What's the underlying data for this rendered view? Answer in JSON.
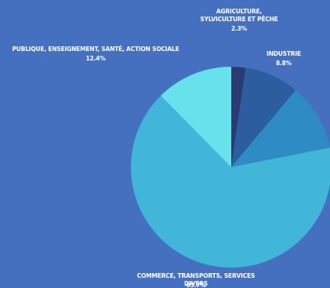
{
  "chart_data": {
    "type": "pie",
    "categories": [
      "AGRICULTURE,\nSYLVICULTURE ET PÊCHE",
      "INDUSTRIE",
      null,
      "COMMERCE, TRANSPORTS, SERVICES DIVERS",
      "PUBLIQUE, ENSEIGNEMENT, SANTÉ, ACTION SOCIALE"
    ],
    "values": [
      2.3,
      8.8,
      10.8,
      65.7,
      12.4
    ],
    "value_labels": [
      "2.3%",
      "8.8%",
      null,
      "65.7%",
      "12.4%"
    ],
    "colors": [
      "#2b3a70",
      "#2c5d9e",
      "#2f8bc3",
      "#41b6d8",
      "#67e1ec"
    ]
  }
}
